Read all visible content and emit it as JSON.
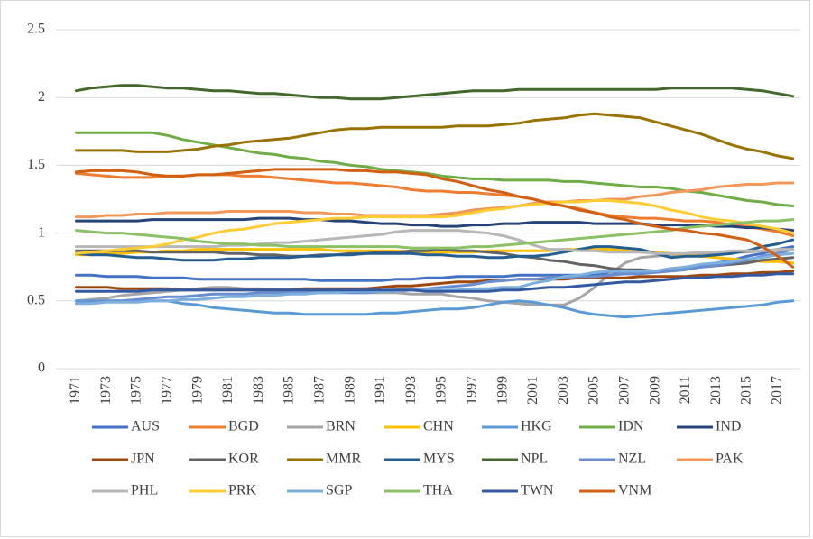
{
  "chart_data": {
    "type": "line",
    "categories": [
      "1971",
      null,
      "1973",
      null,
      "1975",
      null,
      "1977",
      null,
      "1979",
      null,
      "1981",
      null,
      "1983",
      null,
      "1985",
      null,
      "1987",
      null,
      "1989",
      null,
      "1991",
      null,
      "1993",
      null,
      "1995",
      null,
      "1997",
      null,
      "1999",
      null,
      "2001",
      null,
      "2003",
      null,
      "2005",
      null,
      "2007",
      null,
      "2009",
      null,
      "2011",
      null,
      "2013",
      null,
      "2015",
      null,
      "2017",
      null
    ],
    "ylim": [
      0,
      2.5
    ],
    "yticks": [
      0,
      0.5,
      1,
      1.5,
      2,
      2.5
    ],
    "grid": true,
    "legend": "bottom",
    "series": [
      {
        "name": "AUS",
        "color": "#4472c4",
        "values": [
          0.69,
          0.69,
          0.68,
          0.68,
          0.68,
          0.67,
          0.67,
          0.67,
          0.66,
          0.66,
          0.66,
          0.66,
          0.66,
          0.66,
          0.66,
          0.66,
          0.65,
          0.65,
          0.65,
          0.65,
          0.65,
          0.66,
          0.66,
          0.67,
          0.67,
          0.68,
          0.68,
          0.68,
          0.68,
          0.69,
          0.69,
          0.69,
          0.69,
          0.69,
          0.69,
          0.7,
          0.7,
          0.7,
          0.72,
          0.73,
          0.75,
          0.76,
          0.78,
          0.8,
          0.83,
          0.85,
          0.88,
          0.9
        ]
      },
      {
        "name": "BGD",
        "color": "#ed7d31",
        "values": [
          1.44,
          1.43,
          1.42,
          1.41,
          1.41,
          1.41,
          1.42,
          1.42,
          1.43,
          1.43,
          1.43,
          1.42,
          1.42,
          1.41,
          1.4,
          1.39,
          1.38,
          1.37,
          1.37,
          1.36,
          1.35,
          1.34,
          1.32,
          1.31,
          1.31,
          1.3,
          1.3,
          1.29,
          1.28,
          1.27,
          1.25,
          1.22,
          1.2,
          1.18,
          1.15,
          1.13,
          1.12,
          1.11,
          1.11,
          1.1,
          1.09,
          1.09,
          1.08,
          1.06,
          1.05,
          1.03,
          1.01,
          0.98
        ]
      },
      {
        "name": "BRN",
        "color": "#a5a5a5",
        "values": [
          0.5,
          0.51,
          0.52,
          0.54,
          0.55,
          0.56,
          0.57,
          0.58,
          0.59,
          0.6,
          0.6,
          0.59,
          0.59,
          0.58,
          0.58,
          0.58,
          0.57,
          0.57,
          0.56,
          0.56,
          0.56,
          0.56,
          0.55,
          0.55,
          0.55,
          0.53,
          0.52,
          0.5,
          0.49,
          0.48,
          0.47,
          0.47,
          0.47,
          0.52,
          0.6,
          0.7,
          0.78,
          0.82,
          0.83,
          0.84,
          0.84,
          0.85,
          0.85,
          0.86,
          0.86,
          0.87,
          0.87,
          0.88
        ]
      },
      {
        "name": "CHN",
        "color": "#ffc000",
        "values": [
          0.84,
          0.84,
          0.85,
          0.85,
          0.86,
          0.86,
          0.87,
          0.87,
          0.88,
          0.88,
          0.88,
          0.88,
          0.88,
          0.88,
          0.88,
          0.88,
          0.88,
          0.87,
          0.87,
          0.87,
          0.87,
          0.87,
          0.86,
          0.86,
          0.86,
          0.86,
          0.86,
          0.87,
          0.87,
          0.87,
          0.87,
          0.87,
          0.88,
          0.88,
          0.88,
          0.88,
          0.87,
          0.86,
          0.86,
          0.85,
          0.84,
          0.83,
          0.82,
          0.81,
          0.8,
          0.79,
          0.79,
          0.78
        ]
      },
      {
        "name": "HKG",
        "color": "#5b9bd5",
        "values": [
          0.5,
          0.5,
          0.5,
          0.5,
          0.5,
          0.5,
          0.5,
          0.48,
          0.47,
          0.45,
          0.44,
          0.43,
          0.42,
          0.41,
          0.41,
          0.4,
          0.4,
          0.4,
          0.4,
          0.4,
          0.41,
          0.41,
          0.42,
          0.43,
          0.44,
          0.44,
          0.45,
          0.47,
          0.49,
          0.5,
          0.49,
          0.47,
          0.45,
          0.42,
          0.4,
          0.39,
          0.38,
          0.39,
          0.4,
          0.41,
          0.42,
          0.43,
          0.44,
          0.45,
          0.46,
          0.47,
          0.49,
          0.5
        ]
      },
      {
        "name": "IDN",
        "color": "#70ad47",
        "values": [
          1.74,
          1.74,
          1.74,
          1.74,
          1.74,
          1.74,
          1.72,
          1.69,
          1.67,
          1.65,
          1.63,
          1.61,
          1.59,
          1.58,
          1.56,
          1.55,
          1.53,
          1.52,
          1.5,
          1.49,
          1.47,
          1.46,
          1.45,
          1.44,
          1.42,
          1.41,
          1.4,
          1.4,
          1.39,
          1.39,
          1.39,
          1.39,
          1.38,
          1.38,
          1.37,
          1.36,
          1.35,
          1.34,
          1.34,
          1.33,
          1.31,
          1.3,
          1.28,
          1.26,
          1.24,
          1.23,
          1.21,
          1.2
        ]
      },
      {
        "name": "IND",
        "color": "#264478",
        "values": [
          1.09,
          1.09,
          1.09,
          1.09,
          1.09,
          1.1,
          1.1,
          1.1,
          1.1,
          1.1,
          1.1,
          1.1,
          1.11,
          1.11,
          1.11,
          1.1,
          1.1,
          1.09,
          1.09,
          1.08,
          1.07,
          1.07,
          1.06,
          1.06,
          1.05,
          1.05,
          1.06,
          1.06,
          1.07,
          1.07,
          1.08,
          1.08,
          1.08,
          1.08,
          1.07,
          1.07,
          1.07,
          1.07,
          1.06,
          1.06,
          1.06,
          1.06,
          1.05,
          1.05,
          1.04,
          1.04,
          1.03,
          1.02
        ]
      },
      {
        "name": "JPN",
        "color": "#9e480e",
        "values": [
          0.6,
          0.6,
          0.6,
          0.59,
          0.59,
          0.59,
          0.59,
          0.58,
          0.58,
          0.58,
          0.58,
          0.58,
          0.58,
          0.58,
          0.58,
          0.59,
          0.59,
          0.59,
          0.59,
          0.59,
          0.6,
          0.61,
          0.61,
          0.62,
          0.63,
          0.64,
          0.64,
          0.65,
          0.65,
          0.66,
          0.66,
          0.66,
          0.66,
          0.67,
          0.67,
          0.67,
          0.67,
          0.68,
          0.68,
          0.68,
          0.68,
          0.69,
          0.69,
          0.7,
          0.7,
          0.71,
          0.71,
          0.72
        ]
      },
      {
        "name": "KOR",
        "color": "#636363",
        "values": [
          0.87,
          0.87,
          0.87,
          0.87,
          0.87,
          0.86,
          0.86,
          0.86,
          0.86,
          0.86,
          0.85,
          0.85,
          0.84,
          0.84,
          0.83,
          0.83,
          0.84,
          0.84,
          0.85,
          0.85,
          0.86,
          0.86,
          0.87,
          0.87,
          0.88,
          0.87,
          0.87,
          0.86,
          0.85,
          0.83,
          0.82,
          0.8,
          0.79,
          0.77,
          0.76,
          0.74,
          0.73,
          0.73,
          0.72,
          0.73,
          0.74,
          0.75,
          0.76,
          0.77,
          0.78,
          0.8,
          0.81,
          0.82
        ]
      },
      {
        "name": "MMR",
        "color": "#997300",
        "values": [
          1.61,
          1.61,
          1.61,
          1.61,
          1.6,
          1.6,
          1.6,
          1.61,
          1.62,
          1.64,
          1.65,
          1.67,
          1.68,
          1.69,
          1.7,
          1.72,
          1.74,
          1.76,
          1.77,
          1.77,
          1.78,
          1.78,
          1.78,
          1.78,
          1.78,
          1.79,
          1.79,
          1.79,
          1.8,
          1.81,
          1.83,
          1.84,
          1.85,
          1.87,
          1.88,
          1.87,
          1.86,
          1.85,
          1.82,
          1.79,
          1.76,
          1.73,
          1.69,
          1.65,
          1.62,
          1.6,
          1.57,
          1.55
        ]
      },
      {
        "name": "MYS",
        "color": "#255e91",
        "values": [
          0.85,
          0.84,
          0.84,
          0.83,
          0.82,
          0.82,
          0.81,
          0.8,
          0.8,
          0.8,
          0.81,
          0.81,
          0.82,
          0.82,
          0.82,
          0.83,
          0.83,
          0.84,
          0.84,
          0.85,
          0.85,
          0.85,
          0.85,
          0.84,
          0.84,
          0.83,
          0.83,
          0.82,
          0.82,
          0.83,
          0.83,
          0.84,
          0.86,
          0.88,
          0.9,
          0.9,
          0.89,
          0.88,
          0.85,
          0.82,
          0.83,
          0.83,
          0.84,
          0.85,
          0.87,
          0.9,
          0.92,
          0.95
        ]
      },
      {
        "name": "NPL",
        "color": "#43682b",
        "values": [
          2.05,
          2.07,
          2.08,
          2.09,
          2.09,
          2.08,
          2.07,
          2.07,
          2.06,
          2.05,
          2.05,
          2.04,
          2.03,
          2.03,
          2.02,
          2.01,
          2.0,
          2.0,
          1.99,
          1.99,
          1.99,
          2.0,
          2.01,
          2.02,
          2.03,
          2.04,
          2.05,
          2.05,
          2.05,
          2.06,
          2.06,
          2.06,
          2.06,
          2.06,
          2.06,
          2.06,
          2.06,
          2.06,
          2.06,
          2.07,
          2.07,
          2.07,
          2.07,
          2.07,
          2.06,
          2.05,
          2.03,
          2.01
        ]
      },
      {
        "name": "NZL",
        "color": "#698ed0",
        "values": [
          0.48,
          0.49,
          0.5,
          0.5,
          0.51,
          0.52,
          0.53,
          0.53,
          0.54,
          0.55,
          0.55,
          0.55,
          0.56,
          0.56,
          0.56,
          0.56,
          0.56,
          0.56,
          0.56,
          0.56,
          0.57,
          0.58,
          0.58,
          0.59,
          0.6,
          0.61,
          0.62,
          0.64,
          0.65,
          0.66,
          0.66,
          0.67,
          0.67,
          0.68,
          0.68,
          0.69,
          0.7,
          0.7,
          0.71,
          0.72,
          0.73,
          0.75,
          0.76,
          0.78,
          0.8,
          0.83,
          0.85,
          0.88
        ]
      },
      {
        "name": "PAK",
        "color": "#f1975a",
        "values": [
          1.12,
          1.12,
          1.13,
          1.13,
          1.14,
          1.14,
          1.15,
          1.15,
          1.15,
          1.15,
          1.16,
          1.16,
          1.16,
          1.16,
          1.16,
          1.15,
          1.15,
          1.14,
          1.14,
          1.13,
          1.13,
          1.13,
          1.13,
          1.13,
          1.14,
          1.15,
          1.17,
          1.18,
          1.19,
          1.2,
          1.22,
          1.23,
          1.23,
          1.24,
          1.24,
          1.25,
          1.25,
          1.27,
          1.28,
          1.3,
          1.31,
          1.32,
          1.34,
          1.35,
          1.36,
          1.36,
          1.37,
          1.37
        ]
      },
      {
        "name": "PHL",
        "color": "#b7b7b7",
        "values": [
          0.9,
          0.9,
          0.9,
          0.9,
          0.9,
          0.9,
          0.9,
          0.9,
          0.9,
          0.9,
          0.91,
          0.91,
          0.92,
          0.93,
          0.93,
          0.94,
          0.95,
          0.96,
          0.97,
          0.98,
          0.99,
          1.01,
          1.02,
          1.02,
          1.02,
          1.02,
          1.01,
          1.0,
          0.98,
          0.95,
          0.91,
          0.88,
          0.88,
          0.87,
          0.87,
          0.86,
          0.86,
          0.86,
          0.85,
          0.85,
          0.85,
          0.86,
          0.86,
          0.87,
          0.87,
          0.87,
          0.88,
          0.88
        ]
      },
      {
        "name": "PRK",
        "color": "#ffcd33",
        "values": [
          0.85,
          0.86,
          0.87,
          0.88,
          0.89,
          0.9,
          0.92,
          0.95,
          0.97,
          1.0,
          1.02,
          1.03,
          1.05,
          1.07,
          1.08,
          1.09,
          1.1,
          1.11,
          1.11,
          1.12,
          1.12,
          1.12,
          1.12,
          1.12,
          1.12,
          1.13,
          1.15,
          1.17,
          1.18,
          1.2,
          1.21,
          1.22,
          1.23,
          1.23,
          1.24,
          1.24,
          1.23,
          1.22,
          1.2,
          1.17,
          1.15,
          1.12,
          1.1,
          1.09,
          1.07,
          1.05,
          1.03,
          1.0
        ]
      },
      {
        "name": "SGP",
        "color": "#7cafdd",
        "values": [
          0.48,
          0.48,
          0.49,
          0.49,
          0.49,
          0.5,
          0.5,
          0.51,
          0.51,
          0.52,
          0.53,
          0.53,
          0.54,
          0.54,
          0.55,
          0.55,
          0.56,
          0.56,
          0.57,
          0.57,
          0.57,
          0.57,
          0.58,
          0.58,
          0.58,
          0.58,
          0.59,
          0.59,
          0.6,
          0.6,
          0.63,
          0.65,
          0.68,
          0.69,
          0.71,
          0.72,
          0.72,
          0.72,
          0.72,
          0.74,
          0.75,
          0.77,
          0.78,
          0.79,
          0.81,
          0.82,
          0.84,
          0.85
        ]
      },
      {
        "name": "THA",
        "color": "#8cc168",
        "values": [
          1.02,
          1.01,
          1.0,
          1.0,
          0.99,
          0.98,
          0.97,
          0.96,
          0.94,
          0.93,
          0.92,
          0.92,
          0.91,
          0.91,
          0.9,
          0.9,
          0.9,
          0.9,
          0.9,
          0.9,
          0.9,
          0.9,
          0.89,
          0.89,
          0.89,
          0.89,
          0.9,
          0.9,
          0.91,
          0.92,
          0.93,
          0.94,
          0.95,
          0.96,
          0.97,
          0.98,
          0.99,
          1.0,
          1.01,
          1.02,
          1.04,
          1.05,
          1.06,
          1.07,
          1.08,
          1.09,
          1.09,
          1.1
        ]
      },
      {
        "name": "TWN",
        "color": "#335aa1",
        "values": [
          0.57,
          0.57,
          0.57,
          0.57,
          0.57,
          0.58,
          0.58,
          0.58,
          0.58,
          0.58,
          0.58,
          0.58,
          0.58,
          0.58,
          0.58,
          0.58,
          0.58,
          0.58,
          0.58,
          0.58,
          0.58,
          0.58,
          0.58,
          0.57,
          0.57,
          0.57,
          0.57,
          0.57,
          0.58,
          0.58,
          0.59,
          0.6,
          0.6,
          0.61,
          0.62,
          0.63,
          0.64,
          0.64,
          0.65,
          0.66,
          0.67,
          0.67,
          0.68,
          0.68,
          0.69,
          0.69,
          0.7,
          0.7
        ]
      },
      {
        "name": "VNM",
        "color": "#d26012",
        "values": [
          1.45,
          1.46,
          1.46,
          1.46,
          1.45,
          1.43,
          1.42,
          1.42,
          1.43,
          1.43,
          1.44,
          1.45,
          1.46,
          1.47,
          1.47,
          1.47,
          1.47,
          1.47,
          1.46,
          1.46,
          1.45,
          1.45,
          1.44,
          1.43,
          1.4,
          1.38,
          1.35,
          1.32,
          1.3,
          1.27,
          1.25,
          1.22,
          1.2,
          1.17,
          1.15,
          1.12,
          1.1,
          1.07,
          1.05,
          1.03,
          1.02,
          1.0,
          0.99,
          0.97,
          0.95,
          0.9,
          0.83,
          0.75
        ]
      }
    ]
  }
}
